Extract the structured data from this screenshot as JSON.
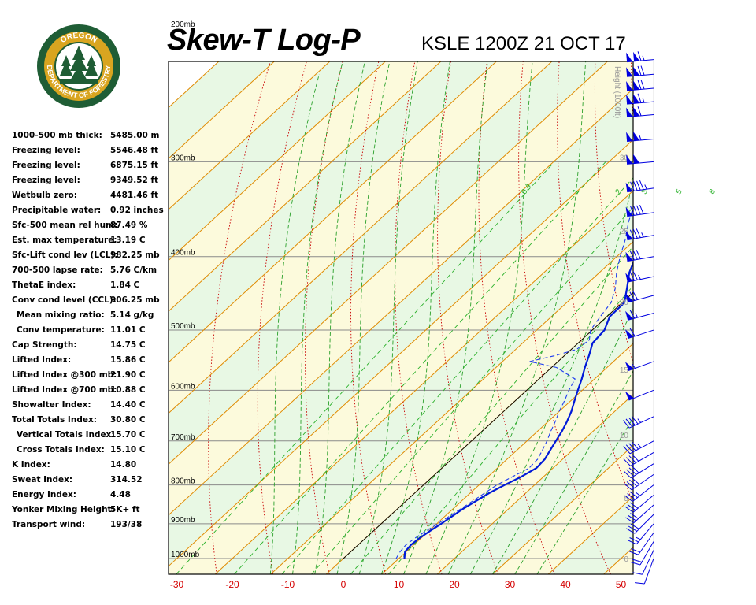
{
  "header": {
    "title": "Skew-T Log-P",
    "station": "KSLE 1200Z 21 OCT 17",
    "logo": {
      "top_text": "OREGON",
      "bottom_text": "DEPARTMENT OF FORESTRY",
      "colors": {
        "ring": "#1f5d35",
        "gold": "#d9a520",
        "tree": "#1f5d35"
      }
    }
  },
  "indices": [
    {
      "label": "1000-500 mb thick:",
      "value": "5485.00 m",
      "indent": false
    },
    {
      "label": "Freezing level:",
      "value": "5546.48 ft",
      "indent": false
    },
    {
      "label": "Freezing level:",
      "value": "6875.15 ft",
      "indent": false
    },
    {
      "label": "Freezing level:",
      "value": "9349.52 ft",
      "indent": false
    },
    {
      "label": "Wetbulb zero:",
      "value": "4481.46 ft",
      "indent": false
    },
    {
      "label": "Precipitable water:",
      "value": "0.92 inches",
      "indent": false
    },
    {
      "label": "Sfc-500 mean rel hum:",
      "value": "87.49 %",
      "indent": false
    },
    {
      "label": "Est. max temperature:",
      "value": "13.19 C",
      "indent": false
    },
    {
      "label": "Sfc-Lift cond lev (LCL):",
      "value": "982.25 mb",
      "indent": false
    },
    {
      "label": "700-500 lapse rate:",
      "value": "5.76 C/km",
      "indent": false
    },
    {
      "label": "ThetaE index:",
      "value": "1.84 C",
      "indent": false
    },
    {
      "label": "Conv cond level (CCL):",
      "value": "906.25 mb",
      "indent": false
    },
    {
      "label": "Mean mixing ratio:",
      "value": "5.14 g/kg",
      "indent": true
    },
    {
      "label": "Conv temperature:",
      "value": "11.01 C",
      "indent": true
    },
    {
      "label": "Cap Strength:",
      "value": "14.75 C",
      "indent": false
    },
    {
      "label": "Lifted Index:",
      "value": "15.86 C",
      "indent": false
    },
    {
      "label": "Lifted Index @300 mb:",
      "value": "21.90 C",
      "indent": false
    },
    {
      "label": "Lifted Index @700 mb:",
      "value": "10.88 C",
      "indent": false
    },
    {
      "label": "Showalter Index:",
      "value": "14.40 C",
      "indent": false
    },
    {
      "label": "Total Totals Index:",
      "value": "30.80 C",
      "indent": false
    },
    {
      "label": "Vertical Totals Index:",
      "value": "15.70 C",
      "indent": true
    },
    {
      "label": "Cross Totals Index:",
      "value": "15.10 C",
      "indent": true
    },
    {
      "label": "K Index:",
      "value": "14.80",
      "indent": false
    },
    {
      "label": "Sweat Index:",
      "value": "314.52",
      "indent": false
    },
    {
      "label": "Energy Index:",
      "value": "4.48",
      "indent": false
    },
    {
      "label": "Yonker Mixing Height:",
      "value": "5K+ ft",
      "indent": false
    },
    {
      "label": "Transport wind:",
      "value": "193/38",
      "indent": false
    }
  ],
  "chart_data": {
    "type": "line",
    "title": "Skew-T Log-P",
    "x_ticks": [
      -30,
      -20,
      -10,
      0,
      10,
      20,
      30,
      40,
      50
    ],
    "x_tick_color": "#d40000",
    "pressure_levels": [
      {
        "p": 200,
        "label": "200mb"
      },
      {
        "p": 300,
        "label": "300mb"
      },
      {
        "p": 400,
        "label": "400mb"
      },
      {
        "p": 500,
        "label": "500mb"
      },
      {
        "p": 600,
        "label": "600mb"
      },
      {
        "p": 700,
        "label": "700mb"
      },
      {
        "p": 800,
        "label": "800mb"
      },
      {
        "p": 900,
        "label": "900mb"
      },
      {
        "p": 1000,
        "label": "1000mb"
      }
    ],
    "height_axis": {
      "label": "Height (1000ft)",
      "ticks": [
        0,
        5,
        10,
        15,
        20,
        25,
        30,
        35,
        40,
        45,
        50
      ]
    },
    "mixing_ratio_labels": [
      "0.4",
      "1",
      "2",
      "3",
      "5",
      "8"
    ],
    "background_colors": {
      "green_band": "#e8f8e4",
      "yellow_band": "#fcfadc"
    },
    "line_colors": {
      "isotherm": "#e08a00",
      "dry_adiabat": "#c80000",
      "moist_adiabat": "#2aa02a",
      "mixing_ratio": "#28b028",
      "temperature": "#0019d8",
      "dewpoint": "#1f3df0",
      "parcel": "#000000",
      "wind": "#0000e0"
    },
    "series": [
      {
        "role": "temperature",
        "points": [
          {
            "p": 1000,
            "t": 11.0
          },
          {
            "p": 980,
            "t": 9.8
          },
          {
            "p": 960,
            "t": 9.5
          },
          {
            "p": 940,
            "t": 9.7
          },
          {
            "p": 920,
            "t": 10.2
          },
          {
            "p": 900,
            "t": 10.8
          },
          {
            "p": 880,
            "t": 11.3
          },
          {
            "p": 860,
            "t": 11.8
          },
          {
            "p": 840,
            "t": 12.6
          },
          {
            "p": 820,
            "t": 13.4
          },
          {
            "p": 800,
            "t": 14.6
          },
          {
            "p": 780,
            "t": 16.0
          },
          {
            "p": 760,
            "t": 17.0
          },
          {
            "p": 740,
            "t": 16.8
          },
          {
            "p": 720,
            "t": 16.0
          },
          {
            "p": 700,
            "t": 15.2
          },
          {
            "p": 680,
            "t": 14.4
          },
          {
            "p": 660,
            "t": 13.4
          },
          {
            "p": 640,
            "t": 12.2
          },
          {
            "p": 620,
            "t": 10.7
          },
          {
            "p": 600,
            "t": 9.2
          },
          {
            "p": 580,
            "t": 7.7
          },
          {
            "p": 560,
            "t": 6.0
          },
          {
            "p": 540,
            "t": 4.4
          },
          {
            "p": 520,
            "t": 2.6
          },
          {
            "p": 500,
            "t": 2.2
          },
          {
            "p": 480,
            "t": 0.5
          },
          {
            "p": 460,
            "t": 0.4
          },
          {
            "p": 440,
            "t": -2.0
          },
          {
            "p": 420,
            "t": -4.6
          },
          {
            "p": 400,
            "t": -6.6
          },
          {
            "p": 380,
            "t": -9.4
          },
          {
            "p": 360,
            "t": -12.4
          },
          {
            "p": 340,
            "t": -15.7
          },
          {
            "p": 320,
            "t": -18.1
          },
          {
            "p": 300,
            "t": -21.4
          },
          {
            "p": 280,
            "t": -25.2
          },
          {
            "p": 260,
            "t": -29.6
          },
          {
            "p": 240,
            "t": -34.1
          },
          {
            "p": 230,
            "t": -35.9
          },
          {
            "p": 220,
            "t": -35.7
          },
          {
            "p": 210,
            "t": -35.2
          },
          {
            "p": 200,
            "t": -34.0
          },
          {
            "p": 190,
            "t": -34.6
          },
          {
            "p": 180,
            "t": -34.6
          },
          {
            "p": 175,
            "t": -37.7
          },
          {
            "p": 165,
            "t": -39.0
          },
          {
            "p": 155,
            "t": -40.3
          },
          {
            "p": 145,
            "t": -43.2
          },
          {
            "p": 140,
            "t": -47.4
          },
          {
            "p": 136,
            "t": -49.3
          },
          {
            "p": 132,
            "t": -49.0
          },
          {
            "p": 127,
            "t": -50.3
          },
          {
            "p": 120,
            "t": -51.4
          }
        ]
      },
      {
        "role": "dewpoint",
        "points": [
          {
            "p": 1000,
            "t": 9.5
          },
          {
            "p": 980,
            "t": 8.9
          },
          {
            "p": 960,
            "t": 8.6
          },
          {
            "p": 940,
            "t": 8.9
          },
          {
            "p": 920,
            "t": 9.5
          },
          {
            "p": 900,
            "t": 10.2
          },
          {
            "p": 880,
            "t": 10.8
          },
          {
            "p": 860,
            "t": 11.4
          },
          {
            "p": 840,
            "t": 12.0
          },
          {
            "p": 820,
            "t": 12.6
          },
          {
            "p": 800,
            "t": 13.2
          },
          {
            "p": 780,
            "t": 14.4
          },
          {
            "p": 760,
            "t": 15.7
          },
          {
            "p": 740,
            "t": 15.5
          },
          {
            "p": 720,
            "t": 14.6
          },
          {
            "p": 700,
            "t": 13.6
          },
          {
            "p": 680,
            "t": 12.4
          },
          {
            "p": 660,
            "t": 11.3
          },
          {
            "p": 640,
            "t": 10.0
          },
          {
            "p": 620,
            "t": 8.9
          },
          {
            "p": 600,
            "t": 7.6
          },
          {
            "p": 580,
            "t": 6.5
          },
          {
            "p": 560,
            "t": 0.9
          },
          {
            "p": 550,
            "t": -5.1
          },
          {
            "p": 540,
            "t": -1.6
          },
          {
            "p": 530,
            "t": 1.0
          },
          {
            "p": 515,
            "t": 1.4
          },
          {
            "p": 500,
            "t": -0.3
          },
          {
            "p": 480,
            "t": -1.2
          },
          {
            "p": 460,
            "t": -2.0
          },
          {
            "p": 440,
            "t": -4.1
          },
          {
            "p": 420,
            "t": -6.9
          },
          {
            "p": 400,
            "t": -9.4
          },
          {
            "p": 380,
            "t": -11.8
          },
          {
            "p": 360,
            "t": -14.7
          },
          {
            "p": 340,
            "t": -17.3
          },
          {
            "p": 320,
            "t": -21.0
          },
          {
            "p": 300,
            "t": -23.8
          },
          {
            "p": 285,
            "t": -27.7
          },
          {
            "p": 270,
            "t": -30.0
          },
          {
            "p": 255,
            "t": -31.0
          },
          {
            "p": 240,
            "t": -33.7
          },
          {
            "p": 225,
            "t": -34.0
          },
          {
            "p": 210,
            "t": -37.1
          },
          {
            "p": 200,
            "t": -41.6
          },
          {
            "p": 190,
            "t": -42.8
          },
          {
            "p": 180,
            "t": -38.0
          },
          {
            "p": 170,
            "t": -39.4
          },
          {
            "p": 160,
            "t": -41.2
          },
          {
            "p": 150,
            "t": -42.3
          },
          {
            "p": 140,
            "t": -40.6
          },
          {
            "p": 130,
            "t": -39.1
          },
          {
            "p": 125,
            "t": -42.4
          }
        ]
      },
      {
        "role": "parcel",
        "points": [
          {
            "p": 1000,
            "t": 0.0
          },
          {
            "p": 227,
            "t": 0.0
          }
        ]
      }
    ],
    "winds": [
      {
        "p": 1000,
        "dir": 200,
        "spd": 10
      },
      {
        "p": 975,
        "dir": 205,
        "spd": 12
      },
      {
        "p": 950,
        "dir": 210,
        "spd": 18
      },
      {
        "p": 925,
        "dir": 215,
        "spd": 22
      },
      {
        "p": 900,
        "dir": 220,
        "spd": 25
      },
      {
        "p": 875,
        "dir": 225,
        "spd": 28
      },
      {
        "p": 850,
        "dir": 228,
        "spd": 30
      },
      {
        "p": 825,
        "dir": 230,
        "spd": 32
      },
      {
        "p": 800,
        "dir": 232,
        "spd": 35
      },
      {
        "p": 775,
        "dir": 235,
        "spd": 38
      },
      {
        "p": 750,
        "dir": 238,
        "spd": 40
      },
      {
        "p": 725,
        "dir": 240,
        "spd": 42
      },
      {
        "p": 700,
        "dir": 242,
        "spd": 45
      },
      {
        "p": 650,
        "dir": 245,
        "spd": 45
      },
      {
        "p": 600,
        "dir": 248,
        "spd": 50
      },
      {
        "p": 550,
        "dir": 250,
        "spd": 55
      },
      {
        "p": 500,
        "dir": 252,
        "spd": 60
      },
      {
        "p": 475,
        "dir": 255,
        "spd": 65
      },
      {
        "p": 450,
        "dir": 255,
        "spd": 70
      },
      {
        "p": 425,
        "dir": 258,
        "spd": 75
      },
      {
        "p": 400,
        "dir": 260,
        "spd": 80
      },
      {
        "p": 375,
        "dir": 260,
        "spd": 85
      },
      {
        "p": 350,
        "dir": 262,
        "spd": 90
      },
      {
        "p": 325,
        "dir": 262,
        "spd": 95
      },
      {
        "p": 300,
        "dir": 265,
        "spd": 100
      },
      {
        "p": 280,
        "dir": 265,
        "spd": 105
      },
      {
        "p": 260,
        "dir": 265,
        "spd": 110
      },
      {
        "p": 250,
        "dir": 265,
        "spd": 115
      },
      {
        "p": 240,
        "dir": 265,
        "spd": 120
      },
      {
        "p": 230,
        "dir": 265,
        "spd": 120
      },
      {
        "p": 220,
        "dir": 265,
        "spd": 115
      },
      {
        "p": 210,
        "dir": 265,
        "spd": 110
      },
      {
        "p": 200,
        "dir": 265,
        "spd": 105
      },
      {
        "p": 190,
        "dir": 265,
        "spd": 100
      },
      {
        "p": 180,
        "dir": 265,
        "spd": 95
      },
      {
        "p": 170,
        "dir": 262,
        "spd": 90
      },
      {
        "p": 160,
        "dir": 262,
        "spd": 85
      },
      {
        "p": 150,
        "dir": 260,
        "spd": 80
      },
      {
        "p": 140,
        "dir": 260,
        "spd": 75
      },
      {
        "p": 130,
        "dir": 258,
        "spd": 70
      },
      {
        "p": 120,
        "dir": 255,
        "spd": 65
      }
    ]
  }
}
